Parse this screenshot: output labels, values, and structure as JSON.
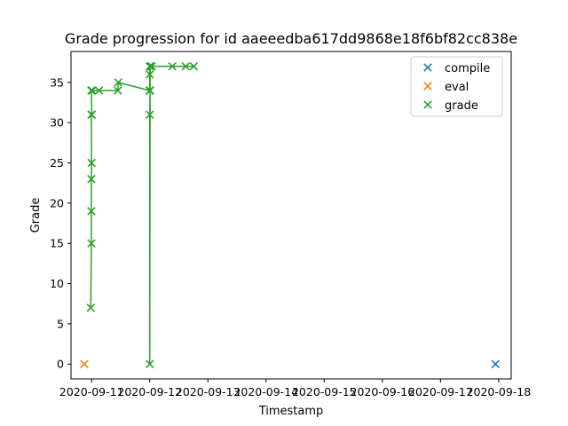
{
  "chart_data": {
    "type": "scatter",
    "title": "Grade progression for id aaeeedba617dd9868e18f6bf82cc838e",
    "xlabel": "Timestamp",
    "ylabel": "Grade",
    "x_is_date": true,
    "xlim": [
      "2020-09-10T15:30",
      "2020-09-18T05:10"
    ],
    "ylim": [
      -1.85,
      38.85
    ],
    "xticks": [
      "2020-09-11",
      "2020-09-12",
      "2020-09-13",
      "2020-09-14",
      "2020-09-15",
      "2020-09-16",
      "2020-09-17",
      "2020-09-18"
    ],
    "yticks": [
      0,
      5,
      10,
      15,
      20,
      25,
      30,
      35
    ],
    "grid": false,
    "legend_position": "top-right",
    "legend": [
      "compile",
      "eval",
      "grade"
    ],
    "series": [
      {
        "name": "compile",
        "color": "#1f77b4",
        "marker": "x",
        "line": false,
        "points": [
          {
            "x": "2020-09-17T22:40",
            "y": 0
          }
        ]
      },
      {
        "name": "eval",
        "color": "#ff7f0e",
        "marker": "x",
        "line": false,
        "points": [
          {
            "x": "2020-09-10T21:00",
            "y": 0
          }
        ]
      },
      {
        "name": "grade",
        "color": "#2ca02c",
        "marker": "x",
        "line": true,
        "points": [
          {
            "x": "2020-09-10T23:40",
            "y": 7
          },
          {
            "x": "2020-09-10T23:55",
            "y": 15
          },
          {
            "x": "2020-09-10T23:55",
            "y": 19
          },
          {
            "x": "2020-09-10T23:55",
            "y": 23
          },
          {
            "x": "2020-09-11T00:00",
            "y": 25
          },
          {
            "x": "2020-09-10T23:55",
            "y": 31
          },
          {
            "x": "2020-09-11T00:05",
            "y": 31
          },
          {
            "x": "2020-09-10T23:55",
            "y": 34
          },
          {
            "x": "2020-09-11T00:15",
            "y": 34
          },
          {
            "x": "2020-09-11T03:05",
            "y": 34
          },
          {
            "x": "2020-09-11T10:50",
            "y": 34
          },
          {
            "x": "2020-09-11T11:00",
            "y": 35
          },
          {
            "x": "2020-09-12T00:00",
            "y": 34
          },
          {
            "x": "2020-09-12T00:00",
            "y": 37
          },
          {
            "x": "2020-09-12T00:00",
            "y": 36
          },
          {
            "x": "2020-09-12T00:00",
            "y": 34
          },
          {
            "x": "2020-09-12T00:10",
            "y": 34
          },
          {
            "x": "2020-09-12T00:00",
            "y": 31
          },
          {
            "x": "2020-09-12T00:00",
            "y": 0
          },
          {
            "x": "2020-09-12T00:10",
            "y": 37
          },
          {
            "x": "2020-09-12T00:50",
            "y": 37
          },
          {
            "x": "2020-09-12T09:20",
            "y": 37
          },
          {
            "x": "2020-09-12T14:50",
            "y": 37
          },
          {
            "x": "2020-09-12T18:10",
            "y": 37
          }
        ]
      }
    ]
  }
}
